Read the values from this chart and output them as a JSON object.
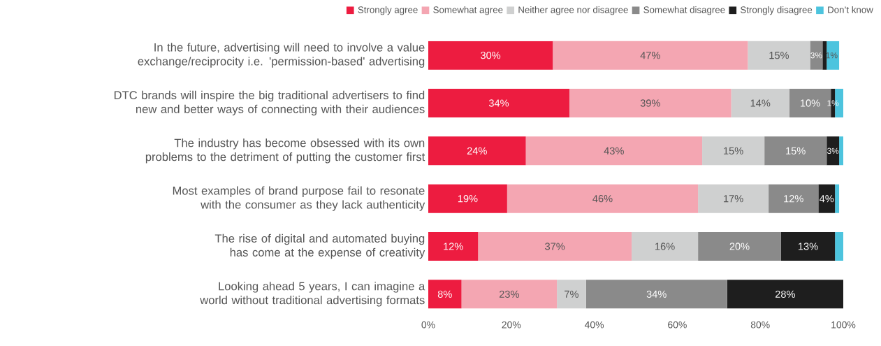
{
  "chart_data": {
    "type": "bar",
    "orientation": "horizontal",
    "stacked": true,
    "legend": "top",
    "grid": false,
    "categories": [
      "In the future, advertising will need to involve a value exchange/reciprocity i.e. 'permission-based' advertising",
      "DTC brands will inspire the big traditional advertisers to find new and better ways of connecting with their audiences",
      "The industry has become obsessed with its own problems to the detriment of putting the customer first",
      "Most examples of brand purpose fail to resonate with the consumer as they lack authenticity",
      "The rise of digital and automated buying has come at the expense of creativity",
      "Looking ahead 5 years, I can imagine a world without traditional advertising formats"
    ],
    "xlim": [
      0,
      100
    ],
    "xticks": [
      {
        "value": 0,
        "label": "0%"
      },
      {
        "value": 20,
        "label": "20%"
      },
      {
        "value": 40,
        "label": "40%"
      },
      {
        "value": 60,
        "label": "60%"
      },
      {
        "value": 80,
        "label": "80%"
      },
      {
        "value": 100,
        "label": "100%"
      }
    ],
    "series": [
      {
        "name": "Strongly agree",
        "color": "#ed1c40",
        "values": [
          30,
          34,
          23.5,
          19,
          12,
          8
        ],
        "value_labels": [
          "30%",
          "34%",
          "24%",
          "19%",
          "12%",
          "8%"
        ]
      },
      {
        "name": "Somewhat agree",
        "color": "#f4a6b2",
        "values": [
          47,
          39,
          42.5,
          46,
          37,
          23
        ],
        "value_labels": [
          "47%",
          "39%",
          "43%",
          "46%",
          "37%",
          "23%"
        ]
      },
      {
        "name": "Neither agree nor disagree",
        "color": "#cfd0d0",
        "values": [
          15,
          14,
          15,
          17,
          16,
          7
        ],
        "value_labels": [
          "15%",
          "14%",
          "15%",
          "17%",
          "16%",
          "7%"
        ]
      },
      {
        "name": "Somewhat disagree",
        "color": "#8a8a8a",
        "values": [
          3,
          10,
          15,
          12,
          20,
          34
        ],
        "value_labels": [
          "3%",
          "10%",
          "15%",
          "12%",
          "20%",
          "34%"
        ]
      },
      {
        "name": "Strongly disagree",
        "color": "#1e1e1e",
        "values": [
          1,
          1,
          3,
          4,
          13,
          28
        ],
        "value_labels": [
          "1%",
          "1%",
          "3%",
          "4%",
          "13%",
          "28%"
        ]
      },
      {
        "name": "Don’t know",
        "color": "#4dc4de",
        "values": [
          3,
          2,
          1,
          1,
          2,
          null
        ],
        "value_labels": [
          null,
          null,
          null,
          null,
          null,
          null
        ]
      }
    ]
  }
}
